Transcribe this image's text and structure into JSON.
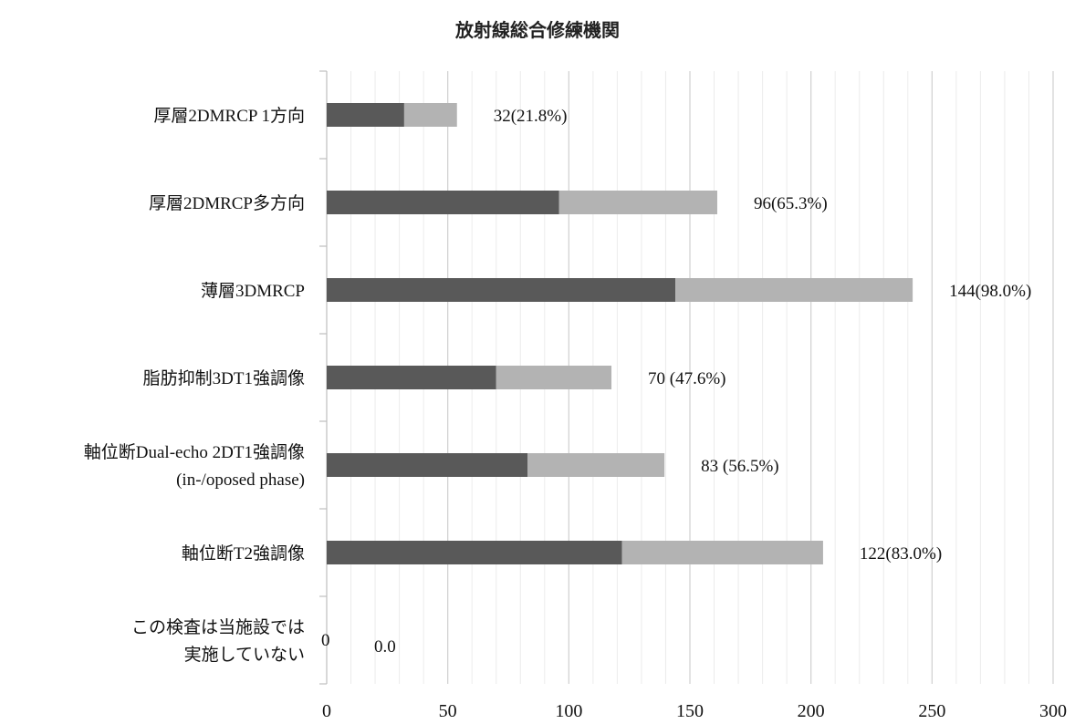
{
  "chart_data": {
    "type": "bar",
    "orientation": "horizontal",
    "stacked": true,
    "title": "放射線総合修練機関",
    "xlim": [
      0,
      300
    ],
    "x_ticks": [
      "0",
      "50",
      "100",
      "150",
      "200",
      "250",
      "300"
    ],
    "grid": true,
    "categories": [
      [
        "厚層2DMRCP 1方向"
      ],
      [
        "厚層2DMRCP多方向"
      ],
      [
        "薄層3DMRCP"
      ],
      [
        "脂肪抑制3DT1強調像"
      ],
      [
        "軸位断Dual-echo 2DT1強調像",
        "(in-/oposed phase)"
      ],
      [
        "軸位断T2強調像"
      ],
      [
        "この検査は当施設では",
        "実施していない"
      ]
    ],
    "series": [
      {
        "color": "#595959",
        "values": [
          32,
          96,
          144,
          70,
          83,
          122,
          0
        ]
      },
      {
        "color": "#b3b3b3",
        "values": [
          21.8,
          65.3,
          98.0,
          47.6,
          56.5,
          83.0,
          0.0
        ]
      }
    ],
    "data_labels": [
      "32(21.8%)",
      "96(65.3%)",
      "144(98.0%)",
      "70 (47.6%)",
      "83 (56.5%)",
      "122(83.0%)",
      [
        "0",
        "0.0"
      ]
    ]
  }
}
